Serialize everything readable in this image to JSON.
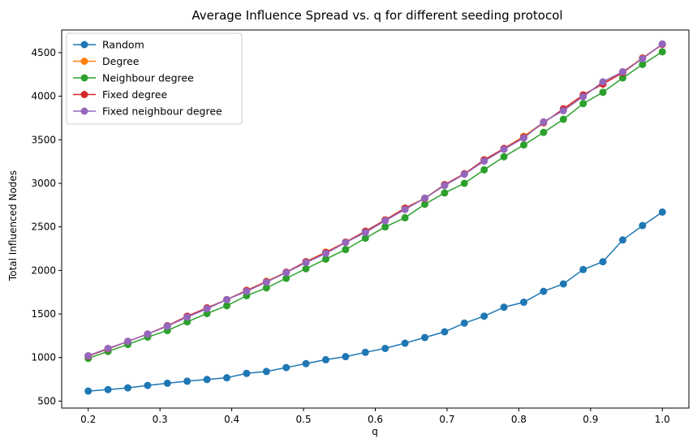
{
  "chart_data": {
    "type": "line",
    "title": "Average Influence Spread vs. q for different seeding protocol",
    "xlabel": "q",
    "ylabel": "Total Influenced Nodes",
    "xlim": [
      0.163,
      1.037
    ],
    "ylim": [
      420,
      4760
    ],
    "xticks": [
      0.2,
      0.3,
      0.4,
      0.5,
      0.6,
      0.7,
      0.8,
      0.9,
      1.0
    ],
    "xtick_labels": [
      "0.2",
      "0.3",
      "0.4",
      "0.5",
      "0.6",
      "0.7",
      "0.8",
      "0.9",
      "1.0"
    ],
    "yticks": [
      500,
      1000,
      1500,
      2000,
      2500,
      3000,
      3500,
      4000,
      4500
    ],
    "ytick_labels": [
      "500",
      "1000",
      "1500",
      "2000",
      "2500",
      "3000",
      "3500",
      "4000",
      "4500"
    ],
    "grid": false,
    "legend_position": "upper-left",
    "x": [
      0.2,
      0.2276,
      0.2552,
      0.2828,
      0.3103,
      0.3379,
      0.3655,
      0.3931,
      0.4207,
      0.4483,
      0.4759,
      0.5034,
      0.531,
      0.5586,
      0.5862,
      0.6138,
      0.6414,
      0.669,
      0.6966,
      0.7241,
      0.7517,
      0.7793,
      0.8069,
      0.8345,
      0.8621,
      0.8897,
      0.9172,
      0.9448,
      0.9724,
      1.0
    ],
    "series": [
      {
        "name": "Random",
        "color": "#1f77b4",
        "values": [
          615,
          632,
          652,
          680,
          705,
          728,
          748,
          768,
          818,
          840,
          885,
          930,
          975,
          1010,
          1060,
          1105,
          1165,
          1230,
          1295,
          1395,
          1475,
          1578,
          1635,
          1760,
          1845,
          2010,
          2100,
          2350,
          2515,
          2670
        ]
      },
      {
        "name": "Degree",
        "color": "#ff7f0e",
        "values": [
          1020,
          1105,
          1185,
          1270,
          1360,
          1470,
          1565,
          1665,
          1770,
          1875,
          1980,
          2100,
          2210,
          2325,
          2445,
          2580,
          2715,
          2830,
          2985,
          3110,
          3265,
          3400,
          3540,
          3700,
          3850,
          4010,
          4150,
          4280,
          4440,
          4595
        ]
      },
      {
        "name": "Neighbour degree",
        "color": "#2ca02c",
        "values": [
          990,
          1070,
          1150,
          1235,
          1310,
          1410,
          1505,
          1595,
          1710,
          1800,
          1910,
          2020,
          2130,
          2240,
          2370,
          2500,
          2605,
          2760,
          2890,
          3000,
          3155,
          3305,
          3440,
          3585,
          3735,
          3915,
          4045,
          4210,
          4365,
          4510
        ]
      },
      {
        "name": "Fixed degree",
        "color": "#d62728",
        "values": [
          1015,
          1100,
          1185,
          1270,
          1365,
          1475,
          1570,
          1665,
          1770,
          1870,
          1980,
          2100,
          2205,
          2325,
          2450,
          2580,
          2715,
          2825,
          2985,
          3110,
          3270,
          3400,
          3530,
          3695,
          3855,
          4015,
          4140,
          4270,
          4435,
          4595
        ]
      },
      {
        "name": "Fixed neighbour degree",
        "color": "#9467bd",
        "values": [
          1020,
          1105,
          1185,
          1270,
          1360,
          1465,
          1560,
          1665,
          1760,
          1865,
          1975,
          2090,
          2195,
          2320,
          2435,
          2570,
          2700,
          2830,
          2975,
          3105,
          3255,
          3390,
          3520,
          3705,
          3835,
          3995,
          4165,
          4280,
          4430,
          4600
        ]
      }
    ]
  }
}
